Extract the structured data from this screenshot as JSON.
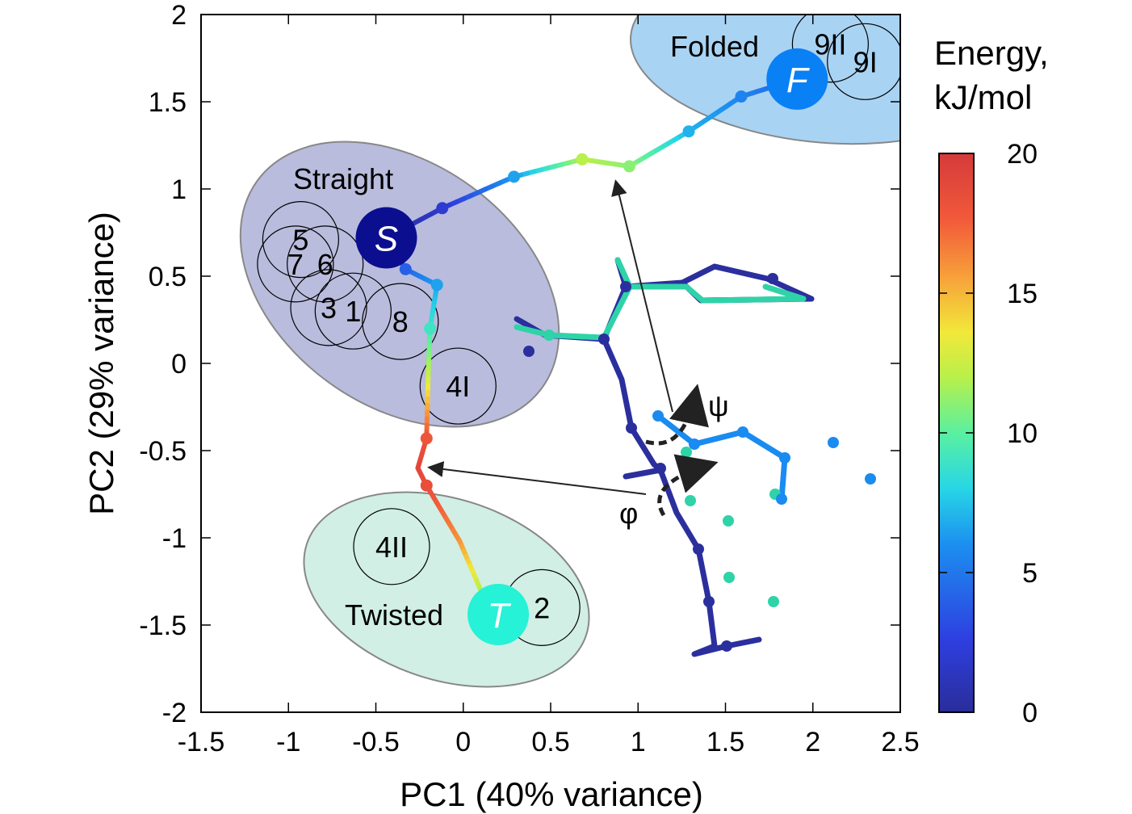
{
  "chart_data": {
    "type": "scatter",
    "xlabel": "PC1 (40% variance)",
    "ylabel": "PC2 (29% variance)",
    "xlim": [
      -1.5,
      2.5
    ],
    "ylim": [
      -2,
      2
    ],
    "xticks": [
      "-1.5",
      "-1",
      "-0.5",
      "0",
      "0.5",
      "1",
      "1.5",
      "2",
      "2.5"
    ],
    "yticks": [
      "-2",
      "-1.5",
      "-1",
      "-0.5",
      "0",
      "0.5",
      "1",
      "1.5",
      "2"
    ],
    "grid": false,
    "colorbar": {
      "title_line1": "Energy,",
      "title_line2": "kJ/mol",
      "range": [
        0,
        20
      ],
      "ticks": [
        "0",
        "5",
        "10",
        "15",
        "20"
      ]
    },
    "regions": [
      {
        "name": "Straight",
        "color": "#b9bcdd"
      },
      {
        "name": "Twisted",
        "color": "#d1efe4"
      },
      {
        "name": "Folded",
        "color": "#a9d3f3"
      }
    ],
    "states": [
      {
        "label": "S",
        "x": -0.44,
        "y": 0.72,
        "energy": 0,
        "color": "#0b0f8f"
      },
      {
        "label": "F",
        "x": 1.91,
        "y": 1.63,
        "energy": 4,
        "color": "#0a80f5"
      },
      {
        "label": "T",
        "x": 0.2,
        "y": -1.44,
        "energy": 7,
        "color": "#25f2d6"
      }
    ],
    "path": [
      {
        "x": 1.91,
        "y": 1.63,
        "energy": 4
      },
      {
        "x": 1.59,
        "y": 1.53,
        "energy": 5.5,
        "marker": true
      },
      {
        "x": 1.29,
        "y": 1.33,
        "energy": 7,
        "marker": true
      },
      {
        "x": 0.95,
        "y": 1.13,
        "energy": 11,
        "marker": true
      },
      {
        "x": 0.68,
        "y": 1.17,
        "energy": 12,
        "marker": true
      },
      {
        "x": 0.29,
        "y": 1.07,
        "energy": 6.5,
        "marker": true
      },
      {
        "x": -0.12,
        "y": 0.89,
        "energy": 2,
        "marker": true
      },
      {
        "x": -0.44,
        "y": 0.72,
        "energy": 0
      },
      {
        "x": -0.33,
        "y": 0.54,
        "energy": 4,
        "marker": true
      },
      {
        "x": -0.15,
        "y": 0.45,
        "energy": 6.5,
        "marker": true
      },
      {
        "x": -0.19,
        "y": 0.2,
        "energy": 9,
        "marker": true
      },
      {
        "x": -0.2,
        "y": -0.05,
        "energy": 12
      },
      {
        "x": -0.21,
        "y": -0.43,
        "energy": 18,
        "marker": true
      },
      {
        "x": -0.26,
        "y": -0.6,
        "energy": 19
      },
      {
        "x": -0.21,
        "y": -0.7,
        "energy": 18.5,
        "marker": true
      },
      {
        "x": -0.02,
        "y": -1.02,
        "energy": 16
      },
      {
        "x": 0.1,
        "y": -1.3,
        "energy": 12
      },
      {
        "x": 0.2,
        "y": -1.44,
        "energy": 7
      }
    ],
    "conformers": [
      {
        "label": "5",
        "x": -0.93,
        "y": 0.71
      },
      {
        "label": "7",
        "x": -0.96,
        "y": 0.57
      },
      {
        "label": "6",
        "x": -0.79,
        "y": 0.57
      },
      {
        "label": "3",
        "x": -0.77,
        "y": 0.32
      },
      {
        "label": "1",
        "x": -0.63,
        "y": 0.3
      },
      {
        "label": "8",
        "x": -0.36,
        "y": 0.24
      },
      {
        "label": "4I",
        "x": -0.03,
        "y": -0.13
      },
      {
        "label": "4II",
        "x": -0.41,
        "y": -1.05
      },
      {
        "label": "2",
        "x": 0.45,
        "y": -1.4
      },
      {
        "label": "9II",
        "x": 2.1,
        "y": 1.83
      },
      {
        "label": "9I",
        "x": 2.3,
        "y": 1.73
      }
    ],
    "annotations": {
      "psi": "ψ",
      "phi": "φ"
    }
  }
}
